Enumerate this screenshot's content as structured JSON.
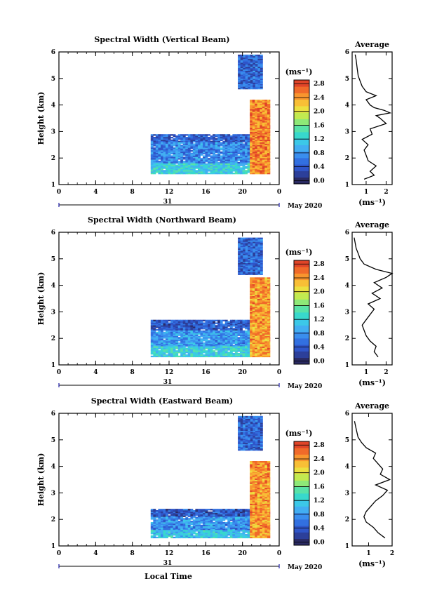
{
  "figure": {
    "xlabel": "Local Time",
    "month_label": "May 2020",
    "day_label": "31",
    "units": "(ms⁻¹)",
    "avg_title": "Average"
  },
  "colorbar": {
    "ticks": [
      "0.0",
      "0.4",
      "0.8",
      "1.2",
      "1.6",
      "2.0",
      "2.4",
      "2.8"
    ],
    "colors": [
      "#2a2a62",
      "#2c3f9a",
      "#2f55c8",
      "#3270e0",
      "#3a8eee",
      "#42aef2",
      "#3cc8e8",
      "#38d8cc",
      "#58e2a8",
      "#8ee878",
      "#c2ea50",
      "#ece040",
      "#f8bf36",
      "#f8952e",
      "#f06a2a",
      "#e04428"
    ]
  },
  "chart_data": [
    {
      "type": "heatmap",
      "title": "Spectral Width (Vertical Beam)",
      "ylabel": "Height (km)",
      "xlim": [
        0,
        24
      ],
      "ylim": [
        1,
        6
      ],
      "xticks": [
        "0",
        "4",
        "8",
        "12",
        "16",
        "20",
        "0"
      ],
      "yticks": [
        "1",
        "2",
        "3",
        "4",
        "5",
        "6"
      ],
      "colorbar_range": [
        0.0,
        3.0
      ],
      "regions": [
        {
          "x": [
            10.0,
            20.8
          ],
          "y": [
            2.6,
            2.9
          ],
          "value": 0.55
        },
        {
          "x": [
            10.0,
            20.8
          ],
          "y": [
            1.8,
            2.6
          ],
          "value": 0.8
        },
        {
          "x": [
            10.0,
            20.8
          ],
          "y": [
            1.4,
            1.8
          ],
          "value": 1.3
        },
        {
          "x": [
            20.8,
            23.0
          ],
          "y": [
            1.4,
            4.2
          ],
          "value": 2.6
        },
        {
          "x": [
            19.5,
            22.2
          ],
          "y": [
            4.6,
            5.9
          ],
          "value": 0.6
        }
      ],
      "average": {
        "xlabel": "(ms⁻¹)",
        "xlim": [
          0.3,
          2.3
        ],
        "xticks": [
          "1",
          "2"
        ],
        "ylim": [
          1,
          6
        ],
        "yticks": [
          "1",
          "2",
          "3",
          "4",
          "5",
          "6"
        ],
        "height": [
          1.2,
          1.35,
          1.5,
          1.7,
          1.9,
          2.1,
          2.3,
          2.5,
          2.7,
          2.9,
          3.1,
          3.3,
          3.5,
          3.6,
          3.7,
          3.8,
          3.9,
          4.0,
          4.2,
          4.35,
          4.5,
          4.7,
          4.9,
          5.1,
          5.4,
          5.7,
          5.9
        ],
        "width": [
          0.9,
          1.4,
          1.2,
          1.5,
          1.1,
          1.0,
          0.9,
          1.1,
          0.8,
          1.3,
          1.2,
          2.0,
          1.7,
          1.5,
          2.2,
          1.9,
          1.4,
          1.2,
          1.0,
          1.5,
          1.0,
          0.8,
          0.7,
          0.6,
          0.55,
          0.5,
          0.45
        ]
      }
    },
    {
      "type": "heatmap",
      "title": "Spectral Width (Northward Beam)",
      "ylabel": "Height (km)",
      "xlim": [
        0,
        24
      ],
      "ylim": [
        1,
        6
      ],
      "xticks": [
        "0",
        "4",
        "8",
        "12",
        "16",
        "20",
        "0"
      ],
      "yticks": [
        "1",
        "2",
        "3",
        "4",
        "5",
        "6"
      ],
      "colorbar_range": [
        0.0,
        3.0
      ],
      "regions": [
        {
          "x": [
            10.0,
            20.8
          ],
          "y": [
            2.3,
            2.7
          ],
          "value": 0.5
        },
        {
          "x": [
            10.0,
            20.8
          ],
          "y": [
            1.7,
            2.3
          ],
          "value": 0.9
        },
        {
          "x": [
            10.0,
            20.8
          ],
          "y": [
            1.3,
            1.7
          ],
          "value": 1.3
        },
        {
          "x": [
            20.8,
            23.0
          ],
          "y": [
            1.3,
            4.3
          ],
          "value": 2.5
        },
        {
          "x": [
            19.5,
            22.2
          ],
          "y": [
            4.4,
            5.8
          ],
          "value": 0.6
        }
      ],
      "average": {
        "xlabel": "(ms⁻¹)",
        "xlim": [
          0.3,
          2.3
        ],
        "xticks": [
          "1",
          "2"
        ],
        "ylim": [
          1,
          6
        ],
        "yticks": [
          "1",
          "2",
          "3",
          "4",
          "5",
          "6"
        ],
        "height": [
          1.3,
          1.5,
          1.7,
          1.9,
          2.1,
          2.3,
          2.5,
          2.7,
          2.9,
          3.1,
          3.3,
          3.5,
          3.7,
          3.9,
          4.1,
          4.3,
          4.45,
          4.6,
          4.8,
          5.0,
          5.2,
          5.4,
          5.6,
          5.8
        ],
        "width": [
          1.6,
          1.4,
          1.5,
          1.2,
          1.0,
          0.9,
          0.8,
          1.0,
          1.2,
          1.4,
          1.1,
          1.7,
          1.3,
          1.8,
          1.4,
          2.0,
          2.3,
          1.5,
          0.9,
          0.7,
          0.6,
          0.5,
          0.45,
          0.4
        ]
      }
    },
    {
      "type": "heatmap",
      "title": "Spectral Width (Eastward Beam)",
      "ylabel": "Height (km)",
      "xlim": [
        0,
        24
      ],
      "ylim": [
        1,
        6
      ],
      "xticks": [
        "0",
        "4",
        "8",
        "12",
        "16",
        "20",
        "0"
      ],
      "yticks": [
        "1",
        "2",
        "3",
        "4",
        "5",
        "6"
      ],
      "colorbar_range": [
        0.0,
        3.0
      ],
      "regions": [
        {
          "x": [
            10.0,
            20.8
          ],
          "y": [
            2.1,
            2.4
          ],
          "value": 0.5
        },
        {
          "x": [
            10.0,
            20.8
          ],
          "y": [
            1.6,
            2.1
          ],
          "value": 0.85
        },
        {
          "x": [
            10.0,
            20.8
          ],
          "y": [
            1.3,
            1.6
          ],
          "value": 1.2
        },
        {
          "x": [
            20.8,
            23.0
          ],
          "y": [
            1.3,
            4.2
          ],
          "value": 2.5
        },
        {
          "x": [
            19.5,
            22.2
          ],
          "y": [
            4.6,
            5.9
          ],
          "value": 0.6
        }
      ],
      "average": {
        "xlabel": "(ms⁻¹)",
        "xlim": [
          0.3,
          2.0
        ],
        "xticks": [
          "1",
          "2"
        ],
        "ylim": [
          1,
          6
        ],
        "yticks": [
          "1",
          "2",
          "3",
          "4",
          "5",
          "6"
        ],
        "height": [
          1.3,
          1.5,
          1.7,
          1.9,
          2.1,
          2.3,
          2.5,
          2.7,
          2.9,
          3.1,
          3.3,
          3.5,
          3.7,
          3.9,
          4.1,
          4.3,
          4.5,
          4.7,
          4.9,
          5.1,
          5.3,
          5.5,
          5.7
        ],
        "width": [
          1.7,
          1.4,
          1.2,
          0.9,
          0.8,
          0.9,
          1.1,
          1.3,
          1.6,
          1.8,
          1.3,
          1.9,
          1.5,
          1.6,
          1.4,
          1.2,
          1.3,
          0.9,
          0.7,
          0.55,
          0.5,
          0.45,
          0.4
        ]
      }
    }
  ]
}
